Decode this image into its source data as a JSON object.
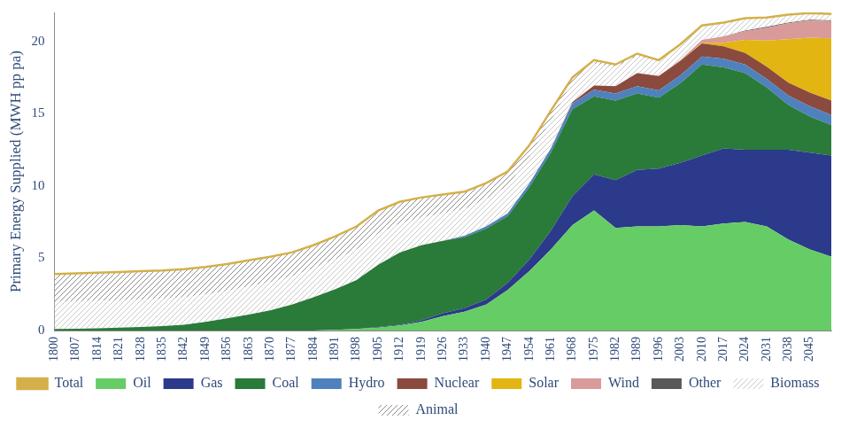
{
  "chart_data": {
    "type": "area",
    "y_label": "Primary Energy Supplied (MWH pp pa)",
    "categories": [
      1800,
      1807,
      1814,
      1821,
      1828,
      1835,
      1842,
      1849,
      1856,
      1863,
      1870,
      1877,
      1884,
      1891,
      1898,
      1905,
      1912,
      1919,
      1926,
      1933,
      1940,
      1947,
      1954,
      1961,
      1968,
      1975,
      1982,
      1989,
      1996,
      2003,
      2010,
      2017,
      2024,
      2031,
      2038,
      2045,
      null
    ],
    "stacked": true,
    "grid": false,
    "legend": "bottom",
    "ylim": [
      0,
      22
    ],
    "yticks": [
      0,
      5,
      10,
      15,
      20
    ],
    "series": [
      {
        "name": "Oil",
        "color": "#66cc66",
        "values": [
          0,
          0,
          0,
          0,
          0,
          0,
          0,
          0,
          0,
          0,
          0,
          0,
          0,
          0.05,
          0.1,
          0.2,
          0.35,
          0.6,
          1.0,
          1.3,
          1.8,
          2.8,
          4.1,
          5.6,
          7.3,
          8.3,
          7.1,
          7.2,
          7.2,
          7.3,
          7.2,
          7.4,
          7.5,
          7.2,
          6.3,
          5.6,
          5.1
        ]
      },
      {
        "name": "Gas",
        "color": "#2b3a8a",
        "values": [
          0,
          0,
          0,
          0,
          0,
          0,
          0,
          0,
          0,
          0,
          0,
          0,
          0,
          0,
          0,
          0.05,
          0.05,
          0.1,
          0.2,
          0.25,
          0.35,
          0.5,
          0.8,
          1.3,
          2.0,
          2.5,
          3.3,
          3.9,
          4.0,
          4.3,
          4.9,
          5.2,
          5.0,
          5.3,
          6.2,
          6.7,
          7.0
        ]
      },
      {
        "name": "Coal",
        "color": "#2a7a3a",
        "values": [
          0.1,
          0.12,
          0.15,
          0.2,
          0.25,
          0.3,
          0.4,
          0.6,
          0.85,
          1.1,
          1.4,
          1.8,
          2.3,
          2.8,
          3.4,
          4.3,
          5.0,
          5.2,
          5.0,
          4.9,
          4.9,
          4.6,
          5.0,
          5.4,
          6.0,
          5.4,
          5.5,
          5.3,
          4.9,
          5.5,
          6.3,
          5.6,
          5.3,
          4.3,
          3.1,
          2.5,
          2.1
        ]
      },
      {
        "name": "Hydro",
        "color": "#4f81bd",
        "values": [
          0,
          0,
          0,
          0,
          0,
          0,
          0,
          0,
          0,
          0,
          0,
          0,
          0,
          0,
          0,
          0,
          0,
          0,
          0,
          0.1,
          0.15,
          0.2,
          0.25,
          0.3,
          0.4,
          0.45,
          0.5,
          0.5,
          0.5,
          0.55,
          0.55,
          0.6,
          0.6,
          0.6,
          0.65,
          0.7,
          0.7
        ]
      },
      {
        "name": "Nuclear",
        "color": "#8b4a3e",
        "values": [
          0,
          0,
          0,
          0,
          0,
          0,
          0,
          0,
          0,
          0,
          0,
          0,
          0,
          0,
          0,
          0,
          0,
          0,
          0,
          0,
          0,
          0,
          0,
          0,
          0.1,
          0.3,
          0.5,
          0.9,
          1.0,
          1.0,
          0.9,
          0.85,
          0.8,
          0.85,
          0.9,
          0.95,
          1.0
        ]
      },
      {
        "name": "Solar",
        "color": "#e3b513",
        "values": [
          0,
          0,
          0,
          0,
          0,
          0,
          0,
          0,
          0,
          0,
          0,
          0,
          0,
          0,
          0,
          0,
          0,
          0,
          0,
          0,
          0,
          0,
          0,
          0,
          0,
          0,
          0,
          0,
          0,
          0,
          0.05,
          0.25,
          0.9,
          1.8,
          3.0,
          3.8,
          4.3
        ]
      },
      {
        "name": "Wind",
        "color": "#d99a9a",
        "values": [
          0,
          0,
          0,
          0,
          0,
          0,
          0,
          0,
          0,
          0,
          0,
          0,
          0,
          0,
          0,
          0,
          0,
          0,
          0,
          0,
          0,
          0,
          0,
          0,
          0,
          0,
          0,
          0,
          0,
          0.05,
          0.2,
          0.45,
          0.6,
          0.9,
          1.1,
          1.2,
          1.2
        ]
      },
      {
        "name": "Other",
        "color": "#595959",
        "values": [
          0,
          0,
          0,
          0,
          0,
          0,
          0,
          0,
          0,
          0,
          0,
          0,
          0,
          0,
          0,
          0,
          0,
          0,
          0,
          0,
          0,
          0,
          0,
          0,
          0,
          0,
          0,
          0,
          0,
          0,
          0,
          0,
          0.05,
          0.05,
          0.05,
          0.05,
          0.05
        ]
      },
      {
        "name": "Biomass",
        "color": "#c8c8c8",
        "marker": "hatch",
        "values": [
          1.9,
          1.9,
          1.9,
          1.9,
          1.9,
          1.9,
          1.9,
          1.9,
          1.9,
          1.95,
          1.95,
          1.95,
          2.0,
          2.05,
          2.1,
          2.15,
          2.0,
          1.9,
          1.9,
          1.85,
          1.9,
          1.9,
          1.85,
          1.9,
          1.4,
          1.5,
          1.3,
          1.2,
          1.0,
          1.0,
          0.9,
          0.85,
          0.8,
          0.6,
          0.5,
          0.4,
          0.4
        ]
      },
      {
        "name": "Animal",
        "color": "#8c8c8c",
        "marker": "hatch",
        "values": [
          1.9,
          1.93,
          1.95,
          1.95,
          1.95,
          1.95,
          1.95,
          1.9,
          1.85,
          1.8,
          1.75,
          1.65,
          1.6,
          1.6,
          1.6,
          1.6,
          1.5,
          1.4,
          1.3,
          1.2,
          1.1,
          1.0,
          0.8,
          0.7,
          0.3,
          0.25,
          0.2,
          0.15,
          0.1,
          0.1,
          0.1,
          0.1,
          0.05,
          0.05,
          0.05,
          0.05,
          0.05
        ]
      },
      {
        "name": "Total",
        "color": "#d4b04a",
        "type": "line",
        "values": [
          3.9,
          3.95,
          4.0,
          4.05,
          4.1,
          4.15,
          4.25,
          4.4,
          4.6,
          4.85,
          5.1,
          5.4,
          5.9,
          6.5,
          7.2,
          8.3,
          8.9,
          9.2,
          9.4,
          9.6,
          10.2,
          11.0,
          12.8,
          15.2,
          17.5,
          18.7,
          18.4,
          19.15,
          18.7,
          19.8,
          21.1,
          21.3,
          21.6,
          21.65,
          21.85,
          21.95,
          21.9
        ]
      }
    ]
  }
}
